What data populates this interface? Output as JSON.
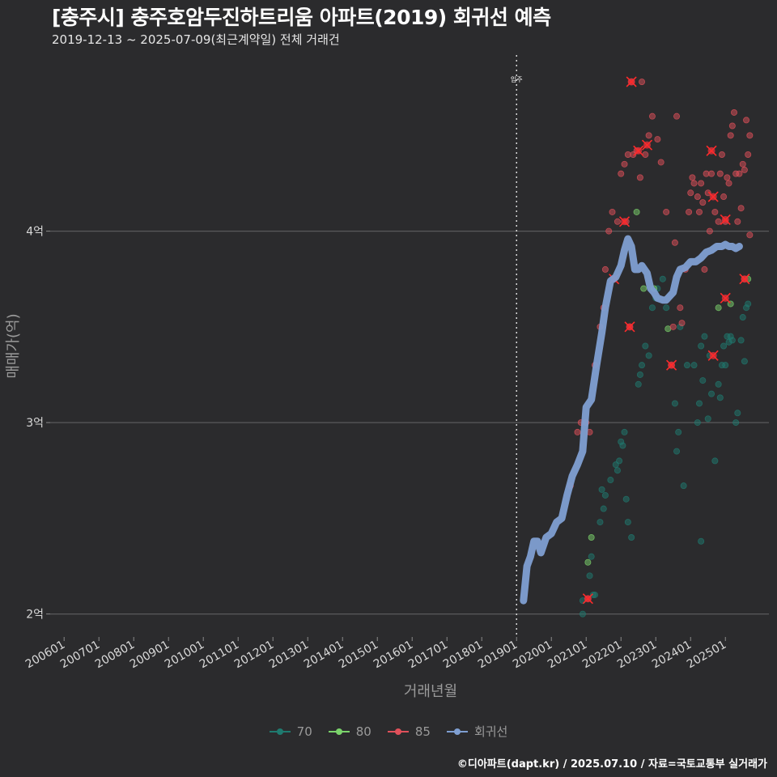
{
  "title": "[충주시] 충주호암두진하트리움 아파트(2019) 회귀선 예측",
  "subtitle": "2019-12-13 ~ 2025-07-09(최근계약일) 전체 거래건",
  "footer": "©디아파트(dapt.kr) / 2025.07.10 / 자료=국토교통부 실거래가",
  "colors": {
    "background": "#2b2b2d",
    "grid": "#5a5a5c",
    "s70": "#1f7a6f",
    "s80": "#7bd36b",
    "s85": "#e0505a",
    "regression": "#7f9fd2"
  },
  "chart_data": {
    "type": "scatter",
    "xlabel": "거래년월",
    "ylabel": "매매가(억)",
    "xlim": [
      2005.6,
      2026.25
    ],
    "ylim": [
      1.88,
      4.92
    ],
    "x_ticks": [
      "200601",
      "200701",
      "200801",
      "200901",
      "201001",
      "201101",
      "201201",
      "201301",
      "201401",
      "201501",
      "201601",
      "201701",
      "201801",
      "201901",
      "202001",
      "202101",
      "202201",
      "202301",
      "202401",
      "202501"
    ],
    "y_ticks": [
      {
        "value": 2,
        "label": "2억"
      },
      {
        "value": 3,
        "label": "3억"
      },
      {
        "value": 4,
        "label": "4억"
      }
    ],
    "vline": {
      "x": 2019.0,
      "label": "입주"
    },
    "series": [
      {
        "name": "70",
        "points": [
          [
            2020.9,
            2.0
          ],
          [
            2020.9,
            2.07
          ],
          [
            2021.2,
            2.1
          ],
          [
            2021.25,
            2.1
          ],
          [
            2021.1,
            2.2
          ],
          [
            2021.15,
            2.3
          ],
          [
            2021.4,
            2.48
          ],
          [
            2021.5,
            2.55
          ],
          [
            2021.55,
            2.62
          ],
          [
            2021.45,
            2.65
          ],
          [
            2021.7,
            2.7
          ],
          [
            2021.9,
            2.75
          ],
          [
            2021.85,
            2.78
          ],
          [
            2021.95,
            2.8
          ],
          [
            2022.0,
            2.9
          ],
          [
            2022.1,
            2.95
          ],
          [
            2022.05,
            2.88
          ],
          [
            2022.15,
            2.6
          ],
          [
            2022.2,
            2.48
          ],
          [
            2022.3,
            2.4
          ],
          [
            2022.5,
            3.2
          ],
          [
            2022.55,
            3.25
          ],
          [
            2022.6,
            3.3
          ],
          [
            2022.7,
            3.4
          ],
          [
            2022.8,
            3.35
          ],
          [
            2022.9,
            3.6
          ],
          [
            2023.0,
            3.65
          ],
          [
            2023.05,
            3.7
          ],
          [
            2023.2,
            3.75
          ],
          [
            2023.3,
            3.6
          ],
          [
            2023.55,
            3.1
          ],
          [
            2023.6,
            2.85
          ],
          [
            2023.65,
            2.95
          ],
          [
            2023.7,
            3.5
          ],
          [
            2023.8,
            2.67
          ],
          [
            2023.9,
            3.3
          ],
          [
            2024.1,
            3.3
          ],
          [
            2024.2,
            3.0
          ],
          [
            2024.25,
            3.1
          ],
          [
            2024.3,
            3.4
          ],
          [
            2024.35,
            3.22
          ],
          [
            2024.4,
            3.45
          ],
          [
            2024.5,
            3.02
          ],
          [
            2024.55,
            3.35
          ],
          [
            2024.6,
            3.15
          ],
          [
            2024.7,
            2.8
          ],
          [
            2024.8,
            3.2
          ],
          [
            2024.85,
            3.13
          ],
          [
            2024.9,
            3.3
          ],
          [
            2024.95,
            3.4
          ],
          [
            2025.0,
            3.3
          ],
          [
            2025.05,
            3.45
          ],
          [
            2025.1,
            3.42
          ],
          [
            2025.15,
            3.45
          ],
          [
            2025.2,
            3.43
          ],
          [
            2025.3,
            3.0
          ],
          [
            2025.35,
            3.05
          ],
          [
            2025.45,
            3.43
          ],
          [
            2025.5,
            3.55
          ],
          [
            2025.55,
            3.32
          ],
          [
            2025.6,
            3.6
          ],
          [
            2025.65,
            3.62
          ],
          [
            2024.3,
            2.38
          ]
        ]
      },
      {
        "name": "80",
        "points": [
          [
            2021.05,
            2.27
          ],
          [
            2021.15,
            2.4
          ],
          [
            2022.45,
            4.1
          ],
          [
            2022.65,
            3.7
          ],
          [
            2022.95,
            3.7
          ],
          [
            2023.35,
            3.49
          ],
          [
            2024.8,
            3.6
          ],
          [
            2025.15,
            3.62
          ],
          [
            2025.65,
            3.75
          ]
        ]
      },
      {
        "name": "85",
        "points": [
          [
            2020.55,
            2.67
          ],
          [
            2020.75,
            2.95
          ],
          [
            2020.85,
            3.0
          ],
          [
            2021.0,
            3.0
          ],
          [
            2021.05,
            2.08
          ],
          [
            2021.1,
            2.95
          ],
          [
            2021.25,
            3.3
          ],
          [
            2021.4,
            3.5
          ],
          [
            2021.5,
            3.6
          ],
          [
            2021.55,
            3.8
          ],
          [
            2021.65,
            4.0
          ],
          [
            2021.75,
            4.1
          ],
          [
            2021.8,
            3.75
          ],
          [
            2021.9,
            4.05
          ],
          [
            2022.0,
            4.3
          ],
          [
            2022.1,
            4.35
          ],
          [
            2022.15,
            4.05
          ],
          [
            2022.2,
            4.4
          ],
          [
            2022.25,
            3.5
          ],
          [
            2022.3,
            4.78
          ],
          [
            2022.35,
            4.4
          ],
          [
            2022.45,
            4.42
          ],
          [
            2022.55,
            4.28
          ],
          [
            2022.6,
            4.78
          ],
          [
            2022.7,
            4.4
          ],
          [
            2022.8,
            4.5
          ],
          [
            2022.9,
            4.6
          ],
          [
            2023.05,
            4.48
          ],
          [
            2023.15,
            4.36
          ],
          [
            2023.3,
            4.1
          ],
          [
            2023.45,
            3.3
          ],
          [
            2023.5,
            3.5
          ],
          [
            2023.55,
            3.94
          ],
          [
            2023.6,
            4.6
          ],
          [
            2023.7,
            3.6
          ],
          [
            2023.75,
            3.52
          ],
          [
            2023.85,
            3.8
          ],
          [
            2023.95,
            4.1
          ],
          [
            2024.0,
            4.2
          ],
          [
            2024.05,
            4.28
          ],
          [
            2024.1,
            4.25
          ],
          [
            2024.2,
            4.18
          ],
          [
            2024.25,
            4.1
          ],
          [
            2024.3,
            4.25
          ],
          [
            2024.35,
            4.15
          ],
          [
            2024.4,
            3.8
          ],
          [
            2024.45,
            4.3
          ],
          [
            2024.5,
            4.2
          ],
          [
            2024.55,
            4.0
          ],
          [
            2024.6,
            4.3
          ],
          [
            2024.7,
            4.1
          ],
          [
            2024.8,
            4.05
          ],
          [
            2024.85,
            4.3
          ],
          [
            2024.9,
            4.4
          ],
          [
            2024.95,
            4.18
          ],
          [
            2025.0,
            4.05
          ],
          [
            2025.05,
            4.28
          ],
          [
            2025.1,
            4.25
          ],
          [
            2025.15,
            4.5
          ],
          [
            2025.2,
            4.55
          ],
          [
            2025.25,
            4.62
          ],
          [
            2025.3,
            4.3
          ],
          [
            2025.35,
            4.05
          ],
          [
            2025.4,
            4.3
          ],
          [
            2025.45,
            4.12
          ],
          [
            2025.5,
            4.35
          ],
          [
            2025.55,
            4.32
          ],
          [
            2025.6,
            4.58
          ],
          [
            2025.65,
            4.4
          ],
          [
            2025.7,
            3.98
          ],
          [
            2025.7,
            4.5
          ],
          [
            2025.55,
            3.75
          ]
        ]
      },
      {
        "name": "회귀선",
        "line": [
          [
            2019.2,
            2.07
          ],
          [
            2019.3,
            2.25
          ],
          [
            2019.4,
            2.3
          ],
          [
            2019.5,
            2.38
          ],
          [
            2019.6,
            2.38
          ],
          [
            2019.7,
            2.32
          ],
          [
            2019.85,
            2.4
          ],
          [
            2020.0,
            2.42
          ],
          [
            2020.15,
            2.48
          ],
          [
            2020.3,
            2.5
          ],
          [
            2020.45,
            2.62
          ],
          [
            2020.6,
            2.72
          ],
          [
            2020.75,
            2.78
          ],
          [
            2020.9,
            2.85
          ],
          [
            2021.0,
            3.08
          ],
          [
            2021.15,
            3.12
          ],
          [
            2021.3,
            3.3
          ],
          [
            2021.45,
            3.47
          ],
          [
            2021.55,
            3.6
          ],
          [
            2021.7,
            3.74
          ],
          [
            2021.85,
            3.76
          ],
          [
            2022.0,
            3.82
          ],
          [
            2022.1,
            3.9
          ],
          [
            2022.2,
            3.96
          ],
          [
            2022.3,
            3.92
          ],
          [
            2022.4,
            3.8
          ],
          [
            2022.5,
            3.8
          ],
          [
            2022.6,
            3.82
          ],
          [
            2022.75,
            3.78
          ],
          [
            2022.85,
            3.7
          ],
          [
            2022.95,
            3.68
          ],
          [
            2023.05,
            3.65
          ],
          [
            2023.2,
            3.64
          ],
          [
            2023.3,
            3.64
          ],
          [
            2023.4,
            3.66
          ],
          [
            2023.5,
            3.68
          ],
          [
            2023.6,
            3.76
          ],
          [
            2023.7,
            3.8
          ],
          [
            2023.85,
            3.81
          ],
          [
            2024.0,
            3.84
          ],
          [
            2024.15,
            3.84
          ],
          [
            2024.3,
            3.86
          ],
          [
            2024.45,
            3.89
          ],
          [
            2024.6,
            3.9
          ],
          [
            2024.75,
            3.92
          ],
          [
            2024.9,
            3.92
          ],
          [
            2025.0,
            3.93
          ],
          [
            2025.1,
            3.92
          ],
          [
            2025.2,
            3.92
          ],
          [
            2025.3,
            3.91
          ],
          [
            2025.4,
            3.92
          ]
        ]
      }
    ],
    "highlights": [
      [
        2021.05,
        2.08
      ],
      [
        2021.8,
        3.75
      ],
      [
        2022.3,
        4.78
      ],
      [
        2022.25,
        3.5
      ],
      [
        2022.5,
        4.42
      ],
      [
        2022.75,
        4.45
      ],
      [
        2023.45,
        3.3
      ],
      [
        2024.6,
        4.42
      ],
      [
        2024.65,
        4.18
      ],
      [
        2024.65,
        3.35
      ],
      [
        2025.0,
        4.06
      ],
      [
        2025.0,
        3.65
      ],
      [
        2025.55,
        3.75
      ],
      [
        2022.1,
        4.05
      ]
    ],
    "legend": [
      {
        "name": "70",
        "color": "#1f7a6f"
      },
      {
        "name": "80",
        "color": "#7bd36b"
      },
      {
        "name": "85",
        "color": "#e0505a"
      },
      {
        "name": "회귀선",
        "color": "#7f9fd2"
      }
    ]
  }
}
